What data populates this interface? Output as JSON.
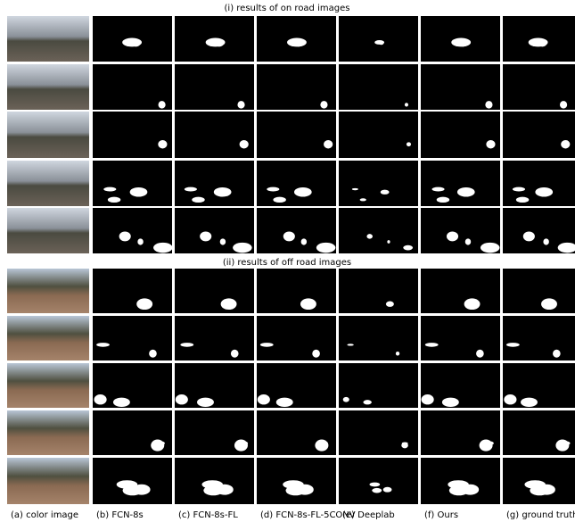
{
  "sections": [
    {
      "title": "(i) results of on road images"
    },
    {
      "title": "(ii) results of off road images"
    }
  ],
  "column_labels": [
    "(a) color image",
    "(b) FCN-8s",
    "(c) FCN-8s-FL",
    "(d) FCN-8s-FL-5CONV",
    "(e) Deeplab",
    "(f) Ours",
    "(g) ground truth"
  ]
}
